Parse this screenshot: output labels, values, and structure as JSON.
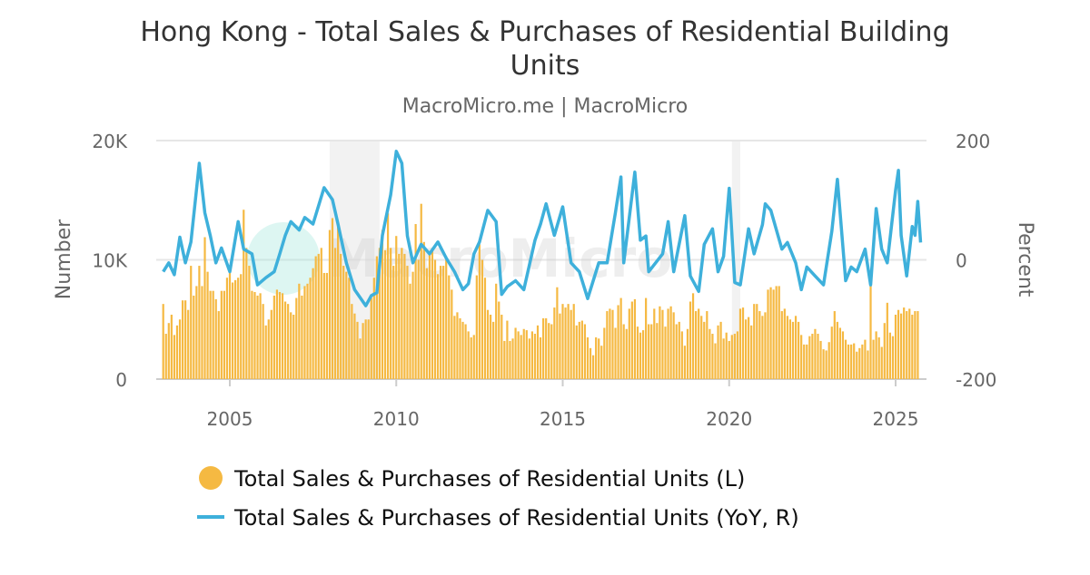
{
  "chart_data": {
    "type": "bar+line",
    "title": "Hong Kong - Total Sales & Purchases of Residential Building Units",
    "subtitle": "MacroMicro.me | MacroMicro",
    "watermark": "MacroMicro",
    "ylabel_left": "Number",
    "ylabel_right": "Percent",
    "ylim_left": [
      0,
      20000
    ],
    "ylim_right": [
      -200,
      200
    ],
    "yticks_left": [
      "0",
      "10K",
      "20K"
    ],
    "yticks_right": [
      "-200",
      "0",
      "200"
    ],
    "xticks": [
      "2005",
      "2010",
      "2015",
      "2020",
      "2025"
    ],
    "grid": true,
    "legend_placement": "bottom",
    "shaded_periods": [
      [
        "2008-01",
        "2009-06"
      ],
      [
        "2020-02",
        "2020-04"
      ]
    ],
    "colors": {
      "bars": "#f5b942",
      "line": "#3eb0db",
      "shade": "#f2f2f2",
      "grid": "#e6e6e6"
    },
    "series": [
      {
        "name": "Total Sales & Purchases of Residential Units (L)",
        "type": "bar",
        "axis": "left",
        "start": "2003-01",
        "frequency": "monthly",
        "values": [
          6300,
          3800,
          4700,
          5400,
          3700,
          4500,
          5000,
          6600,
          6600,
          5800,
          9500,
          7000,
          7800,
          9500,
          7800,
          11900,
          9000,
          7400,
          7400,
          6700,
          5700,
          7400,
          7400,
          8500,
          9100,
          8100,
          8300,
          8500,
          8800,
          14200,
          11000,
          9500,
          7400,
          7300,
          7000,
          7200,
          6300,
          4500,
          5000,
          5800,
          7000,
          7500,
          7300,
          7200,
          6500,
          6300,
          5600,
          5400,
          6800,
          8000,
          7000,
          7800,
          8000,
          8500,
          9300,
          10300,
          10500,
          11000,
          8900,
          8900,
          12500,
          13500,
          11000,
          13000,
          10500,
          9500,
          9000,
          8500,
          6300,
          5500,
          4800,
          3400,
          4700,
          5000,
          5000,
          6800,
          8500,
          10300,
          11000,
          12500,
          10800,
          13900,
          11000,
          9500,
          12000,
          10500,
          11000,
          10500,
          9500,
          8000,
          9000,
          13000,
          10000,
          14700,
          11500,
          9300,
          10500,
          11000,
          10000,
          8800,
          9500,
          9500,
          10300,
          8700,
          7500,
          5300,
          5600,
          5100,
          4800,
          4600,
          4000,
          3500,
          3700,
          8700,
          11300,
          10000,
          8500,
          5800,
          5400,
          4800,
          8000,
          6500,
          5400,
          3200,
          4900,
          3200,
          3400,
          4300,
          4000,
          3700,
          4200,
          4100,
          3400,
          4000,
          3800,
          4500,
          3500,
          5100,
          5100,
          4700,
          4600,
          6000,
          7700,
          5500,
          6300,
          6000,
          6300,
          5800,
          6300,
          4500,
          4800,
          4900,
          4600,
          3500,
          2600,
          2000,
          3500,
          3400,
          2800,
          4300,
          5700,
          5900,
          5800,
          4300,
          6200,
          6800,
          4600,
          4200,
          5900,
          6500,
          6700,
          4400,
          3900,
          4100,
          6800,
          4600,
          4600,
          5900,
          4700,
          6100,
          5800,
          4400,
          5900,
          6100,
          5600,
          4600,
          4800,
          4000,
          2800,
          4200,
          6500,
          7200,
          5700,
          5900,
          5300,
          4800,
          5700,
          4200,
          3800,
          3000,
          4500,
          4800,
          3400,
          3900,
          3200,
          3700,
          3800,
          4000,
          5900,
          6000,
          5000,
          5200,
          4500,
          6300,
          6300,
          5700,
          5300,
          5600,
          7500,
          7700,
          7500,
          7800,
          7800,
          5700,
          5900,
          5300,
          5000,
          4800,
          5300,
          4800,
          3700,
          2900,
          2900,
          3600,
          3800,
          4200,
          3800,
          3200,
          2500,
          2400,
          3100,
          4400,
          5700,
          4800,
          4300,
          4000,
          3300,
          2900,
          2900,
          3000,
          2300,
          2600,
          2900,
          3300,
          2400,
          8700,
          3300,
          4000,
          3500,
          2700,
          4700,
          6400,
          3900,
          3600,
          5400,
          5800,
          5500,
          6000,
          5700,
          5900,
          5400,
          5700,
          5700
        ]
      },
      {
        "name": "Total Sales & Purchases of Residential Units (YoY, R)",
        "type": "line",
        "axis": "right",
        "points": [
          [
            "2003-01",
            -20
          ],
          [
            "2003-03",
            -5
          ],
          [
            "2003-05",
            -25
          ],
          [
            "2003-07",
            38
          ],
          [
            "2003-09",
            -5
          ],
          [
            "2003-11",
            30
          ],
          [
            "2004-02",
            162
          ],
          [
            "2004-04",
            79
          ],
          [
            "2004-06",
            40
          ],
          [
            "2004-08",
            -5
          ],
          [
            "2004-10",
            20
          ],
          [
            "2005-01",
            -20
          ],
          [
            "2005-04",
            64
          ],
          [
            "2005-06",
            18
          ],
          [
            "2005-09",
            10
          ],
          [
            "2005-11",
            -42
          ],
          [
            "2006-02",
            -30
          ],
          [
            "2006-05",
            -20
          ],
          [
            "2006-07",
            10
          ],
          [
            "2006-09",
            41
          ],
          [
            "2006-11",
            64
          ],
          [
            "2007-02",
            50
          ],
          [
            "2007-04",
            71
          ],
          [
            "2007-07",
            60
          ],
          [
            "2007-11",
            121
          ],
          [
            "2008-02",
            101
          ],
          [
            "2008-04",
            60
          ],
          [
            "2008-07",
            -5
          ],
          [
            "2008-10",
            -50
          ],
          [
            "2009-02",
            -77
          ],
          [
            "2009-04",
            -60
          ],
          [
            "2009-06",
            -55
          ],
          [
            "2009-08",
            41
          ],
          [
            "2009-11",
            109
          ],
          [
            "2010-01",
            182
          ],
          [
            "2010-03",
            162
          ],
          [
            "2010-05",
            40
          ],
          [
            "2010-07",
            -5
          ],
          [
            "2010-10",
            26
          ],
          [
            "2011-01",
            10
          ],
          [
            "2011-04",
            30
          ],
          [
            "2011-07",
            3
          ],
          [
            "2011-10",
            -20
          ],
          [
            "2012-01",
            -50
          ],
          [
            "2012-03",
            -40
          ],
          [
            "2012-05",
            10
          ],
          [
            "2012-07",
            30
          ],
          [
            "2012-10",
            83
          ],
          [
            "2013-01",
            64
          ],
          [
            "2013-03",
            -58
          ],
          [
            "2013-05",
            -45
          ],
          [
            "2013-08",
            -35
          ],
          [
            "2013-11",
            -50
          ],
          [
            "2014-03",
            33
          ],
          [
            "2014-05",
            60
          ],
          [
            "2014-07",
            94
          ],
          [
            "2014-10",
            41
          ],
          [
            "2015-01",
            89
          ],
          [
            "2015-04",
            -5
          ],
          [
            "2015-07",
            -20
          ],
          [
            "2015-08",
            -35
          ],
          [
            "2015-10",
            -65
          ],
          [
            "2016-02",
            -5
          ],
          [
            "2016-05",
            -5
          ],
          [
            "2016-08",
            79
          ],
          [
            "2016-10",
            139
          ],
          [
            "2016-11",
            -5
          ],
          [
            "2017-03",
            147
          ],
          [
            "2017-05",
            33
          ],
          [
            "2017-07",
            40
          ],
          [
            "2017-08",
            -20
          ],
          [
            "2018-01",
            10
          ],
          [
            "2018-03",
            64
          ],
          [
            "2018-05",
            -20
          ],
          [
            "2018-09",
            74
          ],
          [
            "2018-11",
            -27
          ],
          [
            "2019-02",
            -53
          ],
          [
            "2019-04",
            26
          ],
          [
            "2019-07",
            52
          ],
          [
            "2019-09",
            -20
          ],
          [
            "2019-11",
            6
          ],
          [
            "2020-01",
            120
          ],
          [
            "2020-03",
            -38
          ],
          [
            "2020-05",
            -42
          ],
          [
            "2020-08",
            52
          ],
          [
            "2020-10",
            10
          ],
          [
            "2021-01",
            59
          ],
          [
            "2021-02",
            94
          ],
          [
            "2021-04",
            83
          ],
          [
            "2021-08",
            18
          ],
          [
            "2021-10",
            29
          ],
          [
            "2022-01",
            -5
          ],
          [
            "2022-03",
            -50
          ],
          [
            "2022-05",
            -12
          ],
          [
            "2022-08",
            -27
          ],
          [
            "2022-11",
            -42
          ],
          [
            "2023-02",
            48
          ],
          [
            "2023-04",
            135
          ],
          [
            "2023-07",
            -35
          ],
          [
            "2023-09",
            -12
          ],
          [
            "2023-11",
            -20
          ],
          [
            "2024-02",
            18
          ],
          [
            "2024-04",
            -42
          ],
          [
            "2024-06",
            86
          ],
          [
            "2024-08",
            18
          ],
          [
            "2024-10",
            -5
          ],
          [
            "2025-01",
            117
          ],
          [
            "2025-02",
            150
          ],
          [
            "2025-03",
            41
          ],
          [
            "2025-05",
            -27
          ],
          [
            "2025-07",
            56
          ],
          [
            "2025-08",
            41
          ],
          [
            "2025-09",
            98
          ],
          [
            "2025-10",
            29
          ]
        ]
      }
    ]
  }
}
